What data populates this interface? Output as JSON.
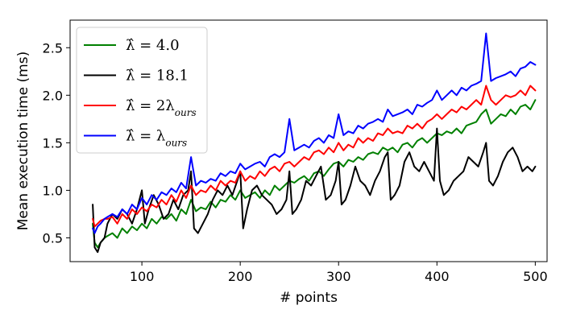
{
  "chart_data": {
    "type": "line",
    "title": "",
    "xlabel": "# points",
    "ylabel": "Mean execution time (ms)",
    "xlim": [
      27,
      512
    ],
    "ylim": [
      0.25,
      2.79
    ],
    "xticks": [
      100,
      200,
      300,
      400,
      500
    ],
    "yticks": [
      0.5,
      1.0,
      1.5,
      2.0,
      2.5
    ],
    "xtick_labels": [
      "100",
      "200",
      "300",
      "400",
      "500"
    ],
    "ytick_labels": [
      "0.5",
      "1.0",
      "1.5",
      "2.0",
      "2.5"
    ],
    "grid": false,
    "legend_position": "top-left",
    "series": [
      {
        "name": "λ̂ = 4.0",
        "legend_main": "λ̂ = 4.0",
        "legend_sub": "",
        "color": "#008000",
        "x": [
          50,
          52,
          55,
          58,
          62,
          65,
          70,
          75,
          80,
          85,
          90,
          95,
          100,
          105,
          110,
          115,
          120,
          125,
          130,
          135,
          140,
          145,
          150,
          155,
          160,
          165,
          170,
          175,
          180,
          185,
          190,
          195,
          200,
          205,
          210,
          215,
          220,
          225,
          230,
          235,
          240,
          245,
          250,
          255,
          260,
          265,
          270,
          275,
          280,
          285,
          290,
          295,
          300,
          305,
          310,
          315,
          320,
          325,
          330,
          335,
          340,
          345,
          350,
          355,
          360,
          365,
          370,
          375,
          380,
          385,
          390,
          395,
          400,
          405,
          410,
          415,
          420,
          425,
          430,
          435,
          440,
          445,
          450,
          455,
          460,
          465,
          470,
          475,
          480,
          485,
          490,
          495,
          500
        ],
        "y": [
          0.65,
          0.45,
          0.4,
          0.45,
          0.5,
          0.52,
          0.55,
          0.5,
          0.6,
          0.55,
          0.62,
          0.58,
          0.65,
          0.6,
          0.7,
          0.65,
          0.72,
          0.7,
          0.75,
          0.68,
          0.8,
          0.75,
          0.9,
          0.78,
          0.82,
          0.8,
          0.88,
          0.82,
          0.9,
          0.88,
          0.95,
          0.9,
          1.0,
          0.92,
          0.95,
          0.98,
          0.92,
          1.0,
          0.95,
          1.05,
          1.0,
          1.05,
          1.1,
          1.08,
          1.12,
          1.15,
          1.1,
          1.18,
          1.2,
          1.15,
          1.22,
          1.28,
          1.3,
          1.25,
          1.32,
          1.3,
          1.35,
          1.32,
          1.38,
          1.4,
          1.38,
          1.45,
          1.42,
          1.45,
          1.4,
          1.48,
          1.5,
          1.45,
          1.52,
          1.55,
          1.5,
          1.55,
          1.6,
          1.58,
          1.62,
          1.6,
          1.65,
          1.6,
          1.68,
          1.7,
          1.72,
          1.8,
          1.85,
          1.7,
          1.75,
          1.8,
          1.78,
          1.85,
          1.8,
          1.88,
          1.9,
          1.85,
          1.95
        ]
      },
      {
        "name": "λ̂ = 18.1",
        "legend_main": "λ̂ = 18.1",
        "legend_sub": "",
        "color": "#000000",
        "x": [
          50,
          52,
          55,
          58,
          62,
          65,
          70,
          75,
          80,
          85,
          90,
          95,
          100,
          103,
          107,
          112,
          117,
          122,
          127,
          132,
          137,
          142,
          147,
          150,
          153,
          157,
          162,
          167,
          172,
          177,
          182,
          187,
          192,
          197,
          200,
          203,
          207,
          212,
          217,
          222,
          227,
          232,
          237,
          242,
          247,
          250,
          253,
          257,
          262,
          267,
          272,
          277,
          282,
          287,
          292,
          297,
          300,
          303,
          307,
          312,
          317,
          322,
          327,
          332,
          337,
          342,
          347,
          350,
          353,
          357,
          362,
          367,
          372,
          377,
          382,
          387,
          392,
          397,
          400,
          403,
          407,
          412,
          417,
          422,
          427,
          432,
          437,
          442,
          447,
          450,
          453,
          457,
          462,
          467,
          472,
          477,
          482,
          487,
          492,
          497,
          500
        ],
        "y": [
          0.85,
          0.4,
          0.35,
          0.45,
          0.5,
          0.65,
          0.75,
          0.7,
          0.8,
          0.75,
          0.65,
          0.8,
          1.0,
          0.65,
          0.8,
          0.95,
          0.85,
          0.7,
          0.75,
          0.9,
          0.8,
          0.95,
          1.0,
          1.2,
          0.6,
          0.55,
          0.65,
          0.75,
          0.9,
          1.0,
          0.95,
          1.05,
          0.95,
          1.1,
          1.2,
          0.6,
          0.8,
          1.0,
          1.05,
          0.95,
          0.9,
          0.85,
          0.75,
          0.8,
          0.9,
          1.2,
          0.75,
          0.8,
          0.9,
          1.1,
          1.05,
          1.15,
          1.25,
          0.9,
          0.95,
          1.1,
          1.3,
          0.85,
          0.9,
          1.05,
          1.25,
          1.1,
          1.05,
          0.95,
          1.1,
          1.2,
          1.35,
          1.4,
          0.9,
          0.95,
          1.05,
          1.3,
          1.4,
          1.25,
          1.2,
          1.3,
          1.2,
          1.1,
          1.65,
          1.1,
          0.95,
          1.0,
          1.1,
          1.15,
          1.2,
          1.35,
          1.3,
          1.25,
          1.4,
          1.5,
          1.1,
          1.05,
          1.15,
          1.3,
          1.4,
          1.45,
          1.35,
          1.2,
          1.25,
          1.2,
          1.25
        ]
      },
      {
        "name": "λ̂ = 2λours",
        "legend_main": "λ̂ = 2λ",
        "legend_sub": "ours",
        "color": "#ff0000",
        "x": [
          50,
          52,
          55,
          58,
          62,
          65,
          70,
          75,
          80,
          85,
          90,
          95,
          100,
          105,
          110,
          115,
          120,
          125,
          130,
          135,
          140,
          145,
          150,
          155,
          160,
          165,
          170,
          175,
          180,
          185,
          190,
          195,
          200,
          205,
          210,
          215,
          220,
          225,
          230,
          235,
          240,
          245,
          250,
          255,
          260,
          265,
          270,
          275,
          280,
          285,
          290,
          295,
          300,
          305,
          310,
          315,
          320,
          325,
          330,
          335,
          340,
          345,
          350,
          355,
          360,
          365,
          370,
          375,
          380,
          385,
          390,
          395,
          400,
          405,
          410,
          415,
          420,
          425,
          430,
          435,
          440,
          445,
          450,
          455,
          460,
          465,
          470,
          475,
          480,
          485,
          490,
          495,
          500
        ],
        "y": [
          0.7,
          0.62,
          0.65,
          0.68,
          0.7,
          0.7,
          0.72,
          0.65,
          0.75,
          0.7,
          0.8,
          0.75,
          0.82,
          0.78,
          0.85,
          0.82,
          0.9,
          0.85,
          0.95,
          0.88,
          1.0,
          0.92,
          1.05,
          0.95,
          1.0,
          0.98,
          1.05,
          1.0,
          1.1,
          1.05,
          1.1,
          1.08,
          1.2,
          1.1,
          1.15,
          1.12,
          1.2,
          1.15,
          1.22,
          1.25,
          1.2,
          1.28,
          1.3,
          1.25,
          1.3,
          1.35,
          1.32,
          1.4,
          1.42,
          1.38,
          1.45,
          1.4,
          1.5,
          1.42,
          1.48,
          1.45,
          1.55,
          1.5,
          1.55,
          1.52,
          1.6,
          1.58,
          1.65,
          1.6,
          1.62,
          1.6,
          1.68,
          1.65,
          1.7,
          1.65,
          1.72,
          1.75,
          1.8,
          1.75,
          1.8,
          1.85,
          1.82,
          1.88,
          1.85,
          1.9,
          1.95,
          1.9,
          2.1,
          1.95,
          1.9,
          1.95,
          2.0,
          1.98,
          2.0,
          2.05,
          2.0,
          2.1,
          2.05
        ]
      },
      {
        "name": "λ̂ = λours",
        "legend_main": "λ̂ = λ",
        "legend_sub": "ours",
        "color": "#0000ff",
        "x": [
          50,
          52,
          55,
          58,
          62,
          65,
          70,
          75,
          80,
          85,
          90,
          95,
          100,
          105,
          110,
          115,
          120,
          125,
          130,
          135,
          140,
          145,
          150,
          155,
          160,
          165,
          170,
          175,
          180,
          185,
          190,
          195,
          200,
          205,
          210,
          215,
          220,
          225,
          230,
          235,
          240,
          245,
          250,
          255,
          260,
          265,
          270,
          275,
          280,
          285,
          290,
          295,
          300,
          305,
          310,
          315,
          320,
          325,
          330,
          335,
          340,
          345,
          350,
          355,
          360,
          365,
          370,
          375,
          380,
          385,
          390,
          395,
          400,
          405,
          410,
          415,
          420,
          425,
          430,
          435,
          440,
          445,
          450,
          455,
          460,
          465,
          470,
          475,
          480,
          485,
          490,
          495,
          500
        ],
        "y": [
          0.6,
          0.55,
          0.62,
          0.65,
          0.7,
          0.72,
          0.75,
          0.72,
          0.8,
          0.75,
          0.85,
          0.8,
          0.92,
          0.85,
          0.95,
          0.9,
          0.98,
          0.95,
          1.02,
          0.98,
          1.08,
          1.02,
          1.35,
          1.05,
          1.1,
          1.08,
          1.12,
          1.1,
          1.18,
          1.15,
          1.2,
          1.18,
          1.28,
          1.22,
          1.25,
          1.28,
          1.3,
          1.25,
          1.35,
          1.38,
          1.35,
          1.4,
          1.75,
          1.42,
          1.45,
          1.48,
          1.45,
          1.52,
          1.55,
          1.5,
          1.58,
          1.55,
          1.8,
          1.58,
          1.62,
          1.6,
          1.68,
          1.65,
          1.7,
          1.72,
          1.75,
          1.72,
          1.85,
          1.78,
          1.8,
          1.82,
          1.85,
          1.8,
          1.9,
          1.88,
          1.92,
          1.95,
          2.05,
          1.95,
          2.0,
          2.05,
          2.0,
          2.08,
          2.05,
          2.1,
          2.12,
          2.15,
          2.65,
          2.15,
          2.18,
          2.2,
          2.22,
          2.25,
          2.2,
          2.28,
          2.3,
          2.35,
          2.32
        ]
      }
    ]
  }
}
